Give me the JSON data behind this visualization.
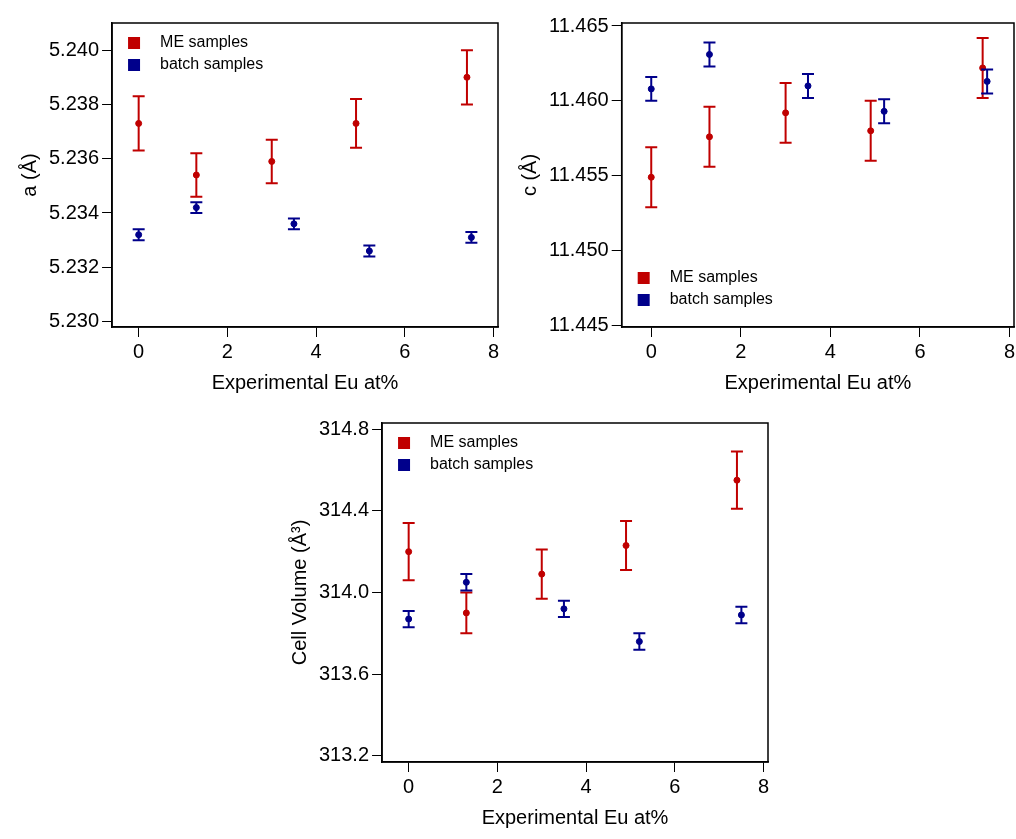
{
  "chart_data": [
    {
      "type": "scatter",
      "xlabel": "Experimental Eu at%",
      "ylabel": "a (Å)",
      "xlim": [
        -0.6,
        8.1
      ],
      "xticks": [
        0,
        2,
        4,
        6,
        8
      ],
      "ylim": [
        5.2298,
        5.241
      ],
      "yticks": [
        {
          "value": 5.23,
          "label": "5.230"
        },
        5.232,
        5.234,
        5.236,
        5.238,
        {
          "value": 5.24,
          "label": "5.240"
        }
      ],
      "grid": false,
      "legend": "top left",
      "marker": "circle",
      "series": [
        {
          "name": "ME samples",
          "color": "#c00000",
          "x": [
            0,
            1.3,
            3.0,
            4.9,
            7.4
          ],
          "values": [
            5.2373,
            5.2354,
            5.2359,
            5.2373,
            5.239
          ],
          "errors": [
            0.001,
            0.0008,
            0.0008,
            0.0009,
            0.001
          ]
        },
        {
          "name": "batch samples",
          "color": "#00008b",
          "x": [
            0,
            1.3,
            3.5,
            5.2,
            7.5
          ],
          "values": [
            5.2332,
            5.2342,
            5.2336,
            5.2326,
            5.2331
          ],
          "errors": [
            0.0002,
            0.0002,
            0.0002,
            0.0002,
            0.0002
          ]
        }
      ]
    },
    {
      "type": "scatter",
      "xlabel": "Experimental Eu at%",
      "ylabel": "c (Å)",
      "xlim": [
        -0.66,
        8.1
      ],
      "xticks": [
        0,
        2,
        4,
        6,
        8
      ],
      "ylim": [
        11.4449,
        11.4652
      ],
      "yticks": [
        11.445,
        {
          "value": 11.45,
          "label": "11.450"
        },
        11.455,
        {
          "value": 11.46,
          "label": "11.460"
        },
        11.465
      ],
      "grid": false,
      "legend": "bottom left",
      "marker": "circle",
      "series": [
        {
          "name": "ME samples",
          "color": "#c00000",
          "x": [
            0,
            1.3,
            3.0,
            4.9,
            7.4
          ],
          "values": [
            11.4549,
            11.4576,
            11.4592,
            11.458,
            11.4622
          ],
          "errors": [
            0.002,
            0.002,
            0.002,
            0.002,
            0.002
          ]
        },
        {
          "name": "batch samples",
          "color": "#00008b",
          "x": [
            0,
            1.3,
            3.5,
            5.2,
            7.5
          ],
          "values": [
            11.4608,
            11.4631,
            11.461,
            11.4593,
            11.4613
          ],
          "errors": [
            0.0008,
            0.0008,
            0.0008,
            0.0008,
            0.0008
          ]
        }
      ]
    },
    {
      "type": "scatter",
      "xlabel": "Experimental Eu at%",
      "ylabel": "Cell Volume (Å³)",
      "xlim": [
        -0.6,
        8.1
      ],
      "xticks": [
        0,
        2,
        4,
        6,
        8
      ],
      "ylim": [
        313.17,
        314.83
      ],
      "yticks": [
        313.2,
        313.6,
        {
          "value": 314,
          "label": "314.0"
        },
        314.4,
        314.8
      ],
      "grid": false,
      "legend": "top left",
      "marker": "circle",
      "series": [
        {
          "name": "ME samples",
          "color": "#c00000",
          "x": [
            0,
            1.3,
            3.0,
            4.9,
            7.4
          ],
          "values": [
            314.2,
            313.9,
            314.09,
            314.23,
            314.55
          ],
          "errors": [
            0.14,
            0.1,
            0.12,
            0.12,
            0.14
          ]
        },
        {
          "name": "batch samples",
          "color": "#00008b",
          "x": [
            0,
            1.3,
            3.5,
            5.2,
            7.5
          ],
          "values": [
            313.87,
            314.05,
            313.92,
            313.76,
            313.89
          ],
          "errors": [
            0.04,
            0.04,
            0.04,
            0.04,
            0.04
          ]
        }
      ]
    }
  ]
}
